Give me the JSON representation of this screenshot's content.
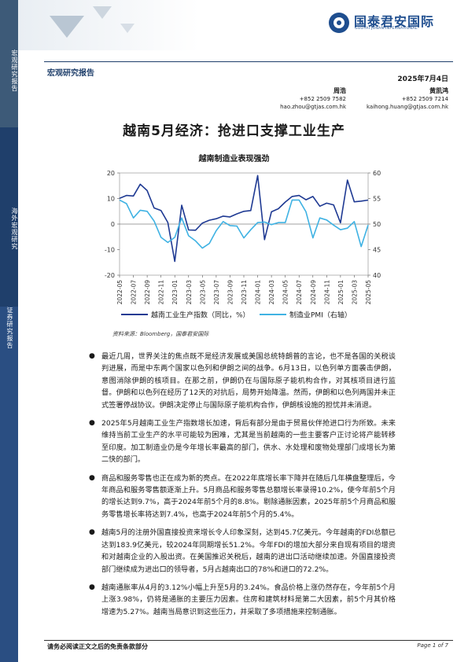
{
  "sidebar": {
    "section1": "宏观研究报告",
    "section2": "海外宏观研究",
    "section3": "证券研究报告"
  },
  "logo": {
    "cn": "国泰君安国际",
    "en": "GUOTAI JUNAN INTERNATIONAL"
  },
  "header": {
    "report_type": "宏观研究报告",
    "date": "2025年7月4日"
  },
  "authors": [
    {
      "name": "周浩",
      "phone": "+852 2509 7582",
      "email": "hao.zhou@gtjas.com.hk"
    },
    {
      "name": "黄凯鸿",
      "phone": "+852 2509 7214",
      "email": "kaihong.huang@gtjas.com.hk"
    }
  ],
  "title": "越南5月经济：抢进口支撑工业生产",
  "chart_title": "越南制造业表现强劲",
  "chart_data": {
    "type": "line",
    "x": [
      "2022-05",
      "2022-06",
      "2022-07",
      "2022-08",
      "2022-09",
      "2022-10",
      "2022-11",
      "2022-12",
      "2023-01",
      "2023-02",
      "2023-03",
      "2023-04",
      "2023-05",
      "2023-06",
      "2023-07",
      "2023-08",
      "2023-09",
      "2023-10",
      "2023-11",
      "2023-12",
      "2024-01",
      "2024-02",
      "2024-03",
      "2024-04",
      "2024-05",
      "2024-06",
      "2024-07",
      "2024-08",
      "2024-09",
      "2024-10",
      "2024-11",
      "2024-12",
      "2025-01",
      "2025-02",
      "2025-03",
      "2025-04",
      "2025-05"
    ],
    "x_tick_labels": [
      "2022-05",
      "2022-07",
      "2022-09",
      "2022-11",
      "2023-01",
      "2023-03",
      "2023-05",
      "2023-07",
      "2023-09",
      "2023-11",
      "2024-01",
      "2024-03",
      "2024-05",
      "2024-07",
      "2024-09",
      "2024-11",
      "2025-01",
      "2025-03",
      "2025-05"
    ],
    "series": [
      {
        "name": "越南工业生产指数（同比，%）",
        "axis": "left",
        "color": "#1f3a93",
        "values": [
          10.1,
          11.2,
          11.0,
          15.6,
          13.1,
          6.3,
          5.3,
          0.6,
          -14.6,
          7.4,
          -2.3,
          -2.4,
          0.4,
          1.5,
          2.1,
          3.1,
          2.8,
          4.0,
          5.0,
          5.3,
          19.0,
          -6.1,
          4.8,
          6.0,
          8.6,
          10.8,
          11.2,
          9.5,
          10.8,
          7.0,
          8.2,
          7.5,
          0.5,
          17.2,
          8.7,
          9.0,
          9.4
        ]
      },
      {
        "name": "制造业PMI（右轴）",
        "axis": "right",
        "color": "#3fb2e3",
        "values": [
          54.7,
          54.0,
          51.2,
          52.7,
          52.5,
          50.6,
          47.4,
          46.4,
          47.4,
          51.2,
          47.7,
          46.7,
          45.3,
          46.2,
          48.7,
          50.5,
          49.7,
          49.6,
          47.3,
          48.9,
          50.3,
          50.4,
          49.9,
          50.3,
          50.3,
          54.7,
          54.7,
          52.4,
          47.3,
          51.2,
          50.8,
          49.8,
          48.9,
          49.2,
          50.5,
          45.6,
          49.8
        ]
      }
    ],
    "left_axis": {
      "ylim": [
        -20,
        20
      ],
      "ticks": [
        -20,
        -10,
        0,
        10,
        20
      ]
    },
    "right_axis": {
      "ylim": [
        40,
        60
      ],
      "ticks": [
        40,
        45,
        50,
        55,
        60
      ]
    },
    "legend": "bottom"
  },
  "source": "资料来源：Bloomberg，国泰君安国际",
  "bullets": [
    "最近几周，世界关注的焦点既不是经济发展或美国总统特朗普的言论，也不是各国的关税谈判进展，而是中东两个国家以色列和伊朗之间的战争。6月13日，以色列单方面袭击伊朗，意图消除伊朗的核项目。在那之前，伊朗仍在与国际原子能机构合作，对其核项目进行监督。伊朗和以色列在经历了12天的对抗后，局势开始降温。然而，伊朗和以色列两国并未正式签署停战协议。伊朗决定停止与国际原子能机构合作，伊朗核设施的担忧并未消退。",
    "2025年5月越南工业生产指数增长加速，背后有部分是由于贸易伙伴抢进口行为所致。未来维持当前工业生产的水平可能较为困难，尤其是当前越南的一些主要客户正讨论将产能转移至印度。加工制造业仍是今年增长率最高的部门，供水、水处理和废物处理部门成增长为第二快的部门。",
    "商品和服务零售也正在成为新的亮点。在2022年底增长率下降并在随后几年横盘整理后，今年商品和服务零售额逐渐上升。5月商品和服务零售总额增长率录得10.2%，使今年前5个月的增长达到9.7%，高于2024年前5个月的8.8%。剔除通胀因素，2025年前5个月商品和服务零售增长率将达到7.4%，也高于2024年前5个月的5.4%。",
    "越南5月的注册外国直接投资来增长令人印象深刻，达到45.7亿美元。今年越南的FDI总额已达到183.9亿美元，较2024年同期增长51.2%。今年FDI的增加大部分来自现有项目的增资和对越南企业的入股出资。在美国推迟关税后，越南的进出口活动继续加速。外国直接投资部门继续成为进出口的领导者，5月占越南出口的78%和进口的72.2%。",
    "越南通胀率从4月的3.12%小幅上升至5月的3.24%。食品价格上涨仍然存在，今年前5个月上涨3.98%，仍将是通胀的主要压力因素。住房和建筑材料是第二大因素，前5个月其价格增速为5.27%。越南当局意识到这些压力，并采取了多项措施来控制通胀。"
  ],
  "footer": {
    "disclaimer": "请务必阅读正文之后的免责条款部分",
    "page": "Page 1 of 7"
  }
}
